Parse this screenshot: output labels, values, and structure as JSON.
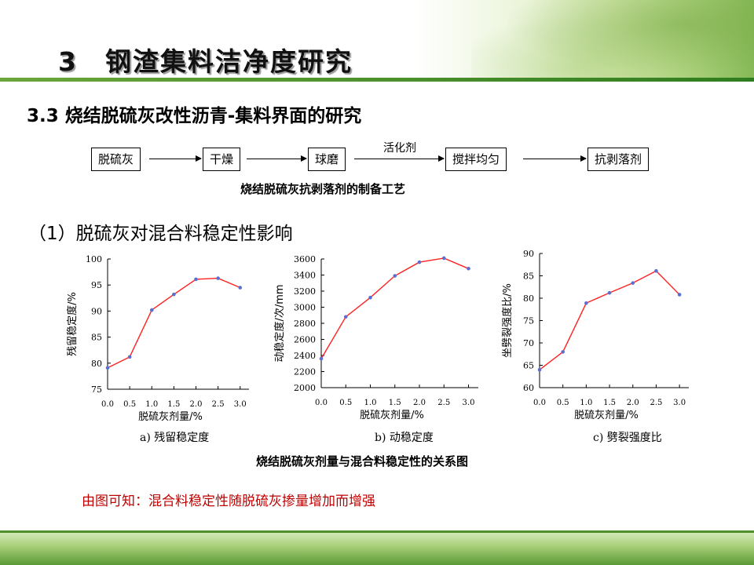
{
  "header": {
    "title": "3　钢渣集料洁净度研究"
  },
  "section": {
    "title": "3.3 烧结脱硫灰改性沥青-集料界面的研究"
  },
  "flow": {
    "steps": [
      "脱硫灰",
      "干燥",
      "球磨",
      "搅拌均匀",
      "抗剥落剂"
    ],
    "note": "活化剂",
    "caption": "烧结脱硫灰抗剥落剂的制备工艺"
  },
  "subsection": {
    "title": "（1）脱硫灰对混合料稳定性影响"
  },
  "chart_data": [
    {
      "type": "line",
      "x": [
        0.0,
        0.5,
        1.0,
        1.5,
        2.0,
        2.5,
        3.0
      ],
      "x_tick_labels": [
        "0.0",
        "0.5",
        "1.0",
        "1.5",
        "2.0",
        "2.5",
        "3.0"
      ],
      "series": [
        {
          "values": [
            79.1,
            81.2,
            90.2,
            93.2,
            96.1,
            96.3,
            94.5
          ]
        }
      ],
      "ylim": [
        75,
        100
      ],
      "y_ticks": [
        75,
        80,
        85,
        90,
        95,
        100
      ],
      "xlabel": "脱硫灰剂量/%",
      "ylabel": "残留稳定度/%",
      "caption": "a) 残留稳定度",
      "line_color": "#ff2020",
      "marker_color": "#5a6fd0",
      "grid": false
    },
    {
      "type": "line",
      "x": [
        0.0,
        0.5,
        1.0,
        1.5,
        2.0,
        2.5,
        3.0
      ],
      "x_tick_labels": [
        "0.0",
        "0.5",
        "1.0",
        "1.5",
        "2.0",
        "2.5",
        "3.0"
      ],
      "series": [
        {
          "values": [
            2360,
            2880,
            3120,
            3390,
            3560,
            3610,
            3480
          ]
        }
      ],
      "ylim": [
        2000,
        3600
      ],
      "y_ticks": [
        2000,
        2200,
        2400,
        2600,
        2800,
        3000,
        3200,
        3400,
        3600
      ],
      "xlabel": "脱硫灰剂量/%",
      "ylabel": "动稳定度/次/mm",
      "caption": "b) 动稳定度",
      "line_color": "#ff2020",
      "marker_color": "#5a6fd0",
      "grid": false
    },
    {
      "type": "line",
      "x": [
        0.0,
        0.5,
        1.0,
        1.5,
        2.0,
        2.5,
        3.0
      ],
      "x_tick_labels": [
        "0.0",
        "0.5",
        "1.0",
        "1.5",
        "2.0",
        "2.5",
        "3.0"
      ],
      "series": [
        {
          "values": [
            64.0,
            68.0,
            78.9,
            81.2,
            83.4,
            86.1,
            80.8
          ]
        }
      ],
      "ylim": [
        60,
        90
      ],
      "y_ticks": [
        60,
        65,
        70,
        75,
        80,
        85,
        90
      ],
      "xlabel": "脱硫灰剂量/%",
      "ylabel": "坐劈裂强度比/%",
      "caption": "c) 劈裂强度比",
      "line_color": "#ff2020",
      "marker_color": "#5a6fd0",
      "grid": false
    }
  ],
  "figure": {
    "caption": "烧结脱硫灰剂量与混合料稳定性的关系图"
  },
  "conclusion": {
    "text": "由图可知：混合料稳定性随脱硫灰掺量增加而增强"
  }
}
